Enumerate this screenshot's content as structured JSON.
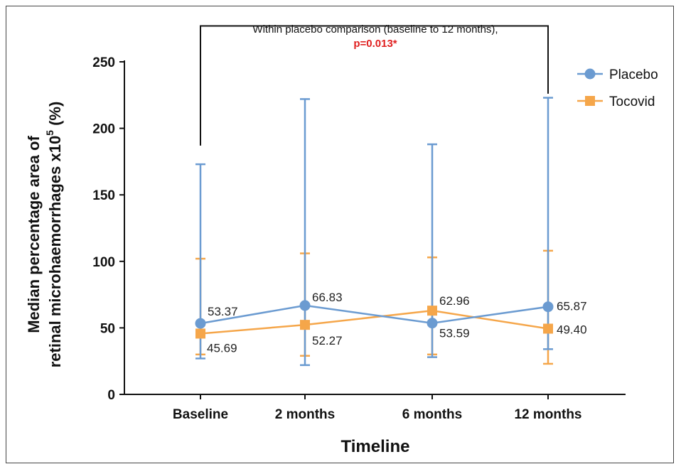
{
  "chart_data": {
    "type": "line",
    "annotation": {
      "line1": "Within placebo comparison  (baseline to 12 months),",
      "line2": "p=0.013*",
      "p_color": "#e02020"
    },
    "xlabel": "Timeline",
    "ylabel_line1": "Median percentage area of",
    "ylabel_line2_main": "retinal microhaemorrhages x10",
    "ylabel_line2_sup": "5",
    "ylabel_line2_tail": " (%)",
    "categories": [
      "Baseline",
      "2 months",
      "6 months",
      "12 months"
    ],
    "ylim": [
      0,
      250
    ],
    "yticks": [
      "0",
      "50",
      "100",
      "150",
      "200",
      "250"
    ],
    "grid": false,
    "legend_position": "top-right",
    "series": [
      {
        "name": "Placebo",
        "color": "#6b9bd1",
        "marker": "circle",
        "values": [
          53.37,
          66.83,
          53.59,
          65.87
        ],
        "labels": [
          "53.37",
          "66.83",
          "53.59",
          "65.87"
        ],
        "err_low": [
          27,
          22,
          28,
          34
        ],
        "err_high": [
          173,
          222,
          188,
          223
        ]
      },
      {
        "name": "Tocovid",
        "color": "#f5a64a",
        "marker": "square",
        "values": [
          45.69,
          52.27,
          62.96,
          49.4
        ],
        "labels": [
          "45.69",
          "52.27",
          "62.96",
          "49.40"
        ],
        "err_low": [
          30,
          29,
          30,
          23
        ],
        "err_high": [
          102,
          106,
          103,
          108
        ]
      }
    ],
    "bracket_from": "Baseline",
    "bracket_to": "12 months",
    "bracket_top_value": 277
  }
}
